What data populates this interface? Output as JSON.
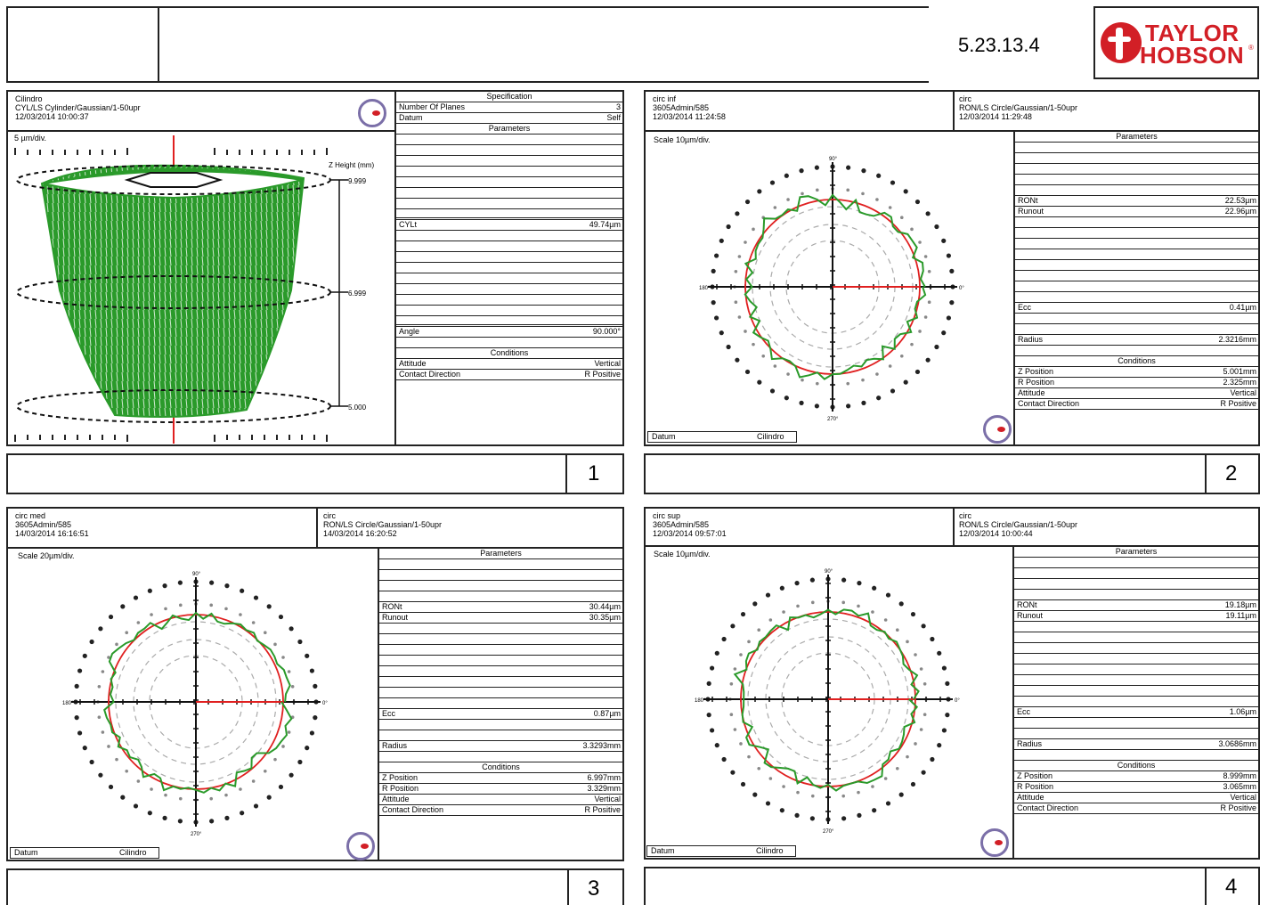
{
  "header": {
    "version": "5.23.13.4",
    "logo_line1": "TAYLOR",
    "logo_line2": "HOBSON",
    "logo_mark": "®"
  },
  "panels": [
    {
      "number": "1",
      "header": {
        "name": "Cilindro",
        "method": "CYL/LS Cylinder/Gaussian/1-50upr",
        "date": "12/03/2014 10:00:37"
      },
      "scale": "5 µm/div.",
      "axis_title": "Z Height (mm)",
      "heights": [
        "9.999",
        "6.999",
        "5.000"
      ],
      "spec_heading": "Specification",
      "spec": [
        {
          "label": "Number Of Planes",
          "value": "3"
        },
        {
          "label": "Datum",
          "value": "Self"
        }
      ],
      "params_heading": "Parameters",
      "params": [
        {
          "label": "CYLt",
          "value": "49.74µm"
        },
        {
          "label": "Angle",
          "value": "90.000°"
        }
      ],
      "cond_heading": "Conditions",
      "cond": [
        {
          "label": "Attitude",
          "value": "Vertical"
        },
        {
          "label": "Contact Direction",
          "value": "R Positive"
        }
      ]
    },
    {
      "number": "2",
      "header": {
        "name": "circ inf",
        "operator": "3605Admin/585",
        "date1": "12/03/2014 11:24:58",
        "type": "circ",
        "method": "RON/LS Circle/Gaussian/1-50upr",
        "date2": "12/03/2014 11:29:48"
      },
      "scale": "Scale 10µm/div.",
      "datum_label": "Datum",
      "datum_value": "Cilindro",
      "params_heading": "Parameters",
      "params": [
        {
          "label": "RONt",
          "value": "22.53µm"
        },
        {
          "label": "Runout",
          "value": "22.96µm"
        },
        {
          "label": "Ecc",
          "value": "0.41µm"
        },
        {
          "label": "Radius",
          "value": "2.3216mm"
        }
      ],
      "cond_heading": "Conditions",
      "cond": [
        {
          "label": "Z Position",
          "value": "5.001mm"
        },
        {
          "label": "R Position",
          "value": "2.325mm"
        },
        {
          "label": "Attitude",
          "value": "Vertical"
        },
        {
          "label": "Contact Direction",
          "value": "R Positive"
        }
      ],
      "axes": {
        "top": "90°",
        "bottom": "270°",
        "left": "180°",
        "right": "0°"
      }
    },
    {
      "number": "3",
      "header": {
        "name": "circ med",
        "operator": "3605Admin/585",
        "date1": "14/03/2014 16:16:51",
        "type": "circ",
        "method": "RON/LS Circle/Gaussian/1-50upr",
        "date2": "14/03/2014 16:20:52"
      },
      "scale": "Scale 20µm/div.",
      "datum_label": "Datum",
      "datum_value": "Cilindro",
      "params_heading": "Parameters",
      "params": [
        {
          "label": "RONt",
          "value": "30.44µm"
        },
        {
          "label": "Runout",
          "value": "30.35µm"
        },
        {
          "label": "Ecc",
          "value": "0.87µm"
        },
        {
          "label": "Radius",
          "value": "3.3293mm"
        }
      ],
      "cond_heading": "Conditions",
      "cond": [
        {
          "label": "Z Position",
          "value": "6.997mm"
        },
        {
          "label": "R Position",
          "value": "3.329mm"
        },
        {
          "label": "Attitude",
          "value": "Vertical"
        },
        {
          "label": "Contact Direction",
          "value": "R Positive"
        }
      ],
      "axes": {
        "top": "90°",
        "bottom": "270°",
        "left": "180°",
        "right": "0°"
      }
    },
    {
      "number": "4",
      "header": {
        "name": "circ sup",
        "operator": "3605Admin/585",
        "date1": "12/03/2014 09:57:01",
        "type": "circ",
        "method": "RON/LS Circle/Gaussian/1-50upr",
        "date2": "12/03/2014 10:00:44"
      },
      "scale": "Scale 10µm/div.",
      "datum_label": "Datum",
      "datum_value": "Cilindro",
      "params_heading": "Parameters",
      "params": [
        {
          "label": "RONt",
          "value": "19.18µm"
        },
        {
          "label": "Runout",
          "value": "19.11µm"
        },
        {
          "label": "Ecc",
          "value": "1.06µm"
        },
        {
          "label": "Radius",
          "value": "3.0686mm"
        }
      ],
      "cond_heading": "Conditions",
      "cond": [
        {
          "label": "Z Position",
          "value": "8.999mm"
        },
        {
          "label": "R Position",
          "value": "3.065mm"
        },
        {
          "label": "Attitude",
          "value": "Vertical"
        },
        {
          "label": "Contact Direction",
          "value": "R Positive"
        }
      ],
      "axes": {
        "top": "90°",
        "bottom": "270°",
        "left": "180°",
        "right": "0°"
      }
    }
  ],
  "colors": {
    "profile": "#2a9a2a",
    "reference": "#e02020",
    "grid": "#999999",
    "logo_red": "#d21f26",
    "badge": "#7b6fa8"
  }
}
